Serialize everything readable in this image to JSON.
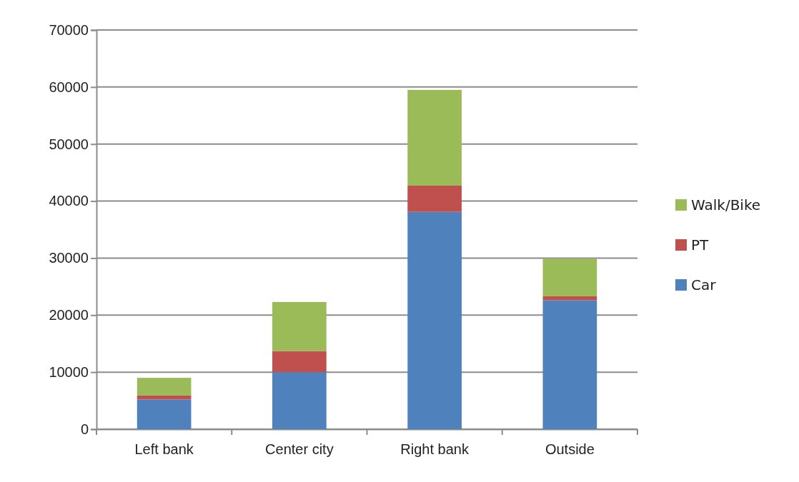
{
  "chart_data": {
    "type": "bar",
    "stacked": true,
    "categories": [
      "Left bank",
      "Center city",
      "Right bank",
      "Outside"
    ],
    "series": [
      {
        "name": "Car",
        "color": "#4f81bd",
        "values": [
          5200,
          10000,
          38100,
          22600
        ]
      },
      {
        "name": "PT",
        "color": "#c0504d",
        "values": [
          700,
          3700,
          4600,
          700
        ]
      },
      {
        "name": "Walk/Bike",
        "color": "#9bbb59",
        "values": [
          3100,
          8600,
          16800,
          6600
        ]
      }
    ],
    "ylim": [
      0,
      70000
    ],
    "yticks": [
      0,
      10000,
      20000,
      30000,
      40000,
      50000,
      60000,
      70000
    ],
    "grid": "y",
    "legend": "right"
  }
}
